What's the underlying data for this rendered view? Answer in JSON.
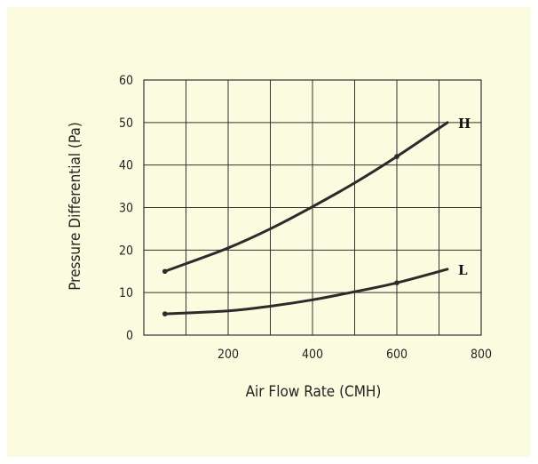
{
  "chart_data": {
    "type": "line",
    "xlabel": "Air Flow Rate (CMH)",
    "ylabel": "Pressure Differential (Pa)",
    "xlim": [
      0,
      800
    ],
    "ylim": [
      0,
      60
    ],
    "xticks": [
      200,
      400,
      600,
      800
    ],
    "yticks": [
      0,
      10,
      20,
      30,
      40,
      50,
      60
    ],
    "x_gridlines": [
      100,
      200,
      300,
      400,
      500,
      600,
      700,
      800
    ],
    "grid": true,
    "series": [
      {
        "name": "H",
        "x": [
          50,
          100,
          200,
          300,
          400,
          500,
          600,
          720
        ],
        "y": [
          15,
          16.8,
          20.5,
          25,
          30.2,
          35.8,
          42,
          50
        ],
        "markers_at": [
          50,
          600
        ]
      },
      {
        "name": "L",
        "x": [
          50,
          200,
          300,
          400,
          500,
          600,
          720
        ],
        "y": [
          5,
          5.7,
          6.8,
          8.3,
          10.2,
          12.3,
          15.5
        ],
        "markers_at": [
          50,
          600
        ]
      }
    ]
  },
  "colors": {
    "background": "#fbfbdf",
    "line": "#2b2b2b",
    "grid": "#333333"
  }
}
